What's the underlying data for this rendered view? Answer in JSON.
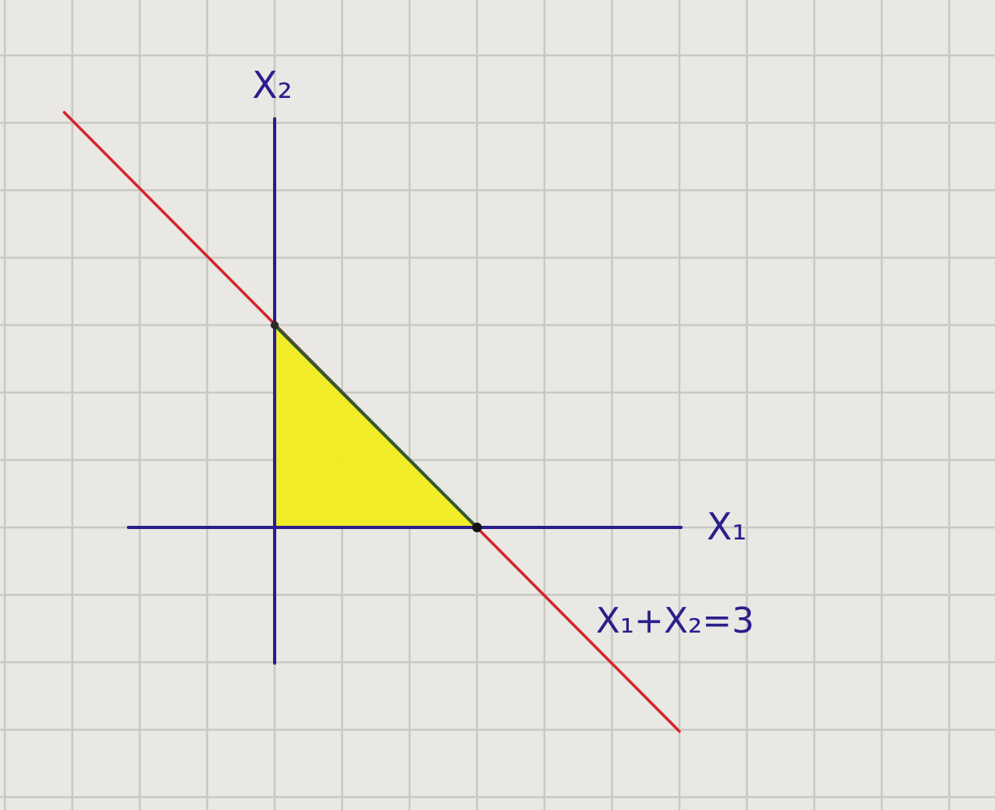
{
  "diagram": {
    "axis_labels": {
      "vertical": "X₂",
      "horizontal": "X₁"
    },
    "line_label": "X₁+X₂=3",
    "colors": {
      "paper": "#e9e8e4",
      "grid": "#c9c8c4",
      "axes": "#2a1f8c",
      "constraint_line": "#d4262b",
      "feasible_fill": "#f3ec1e",
      "feasible_edge": "#2f5a2f",
      "vertex": "#111111"
    }
  }
}
